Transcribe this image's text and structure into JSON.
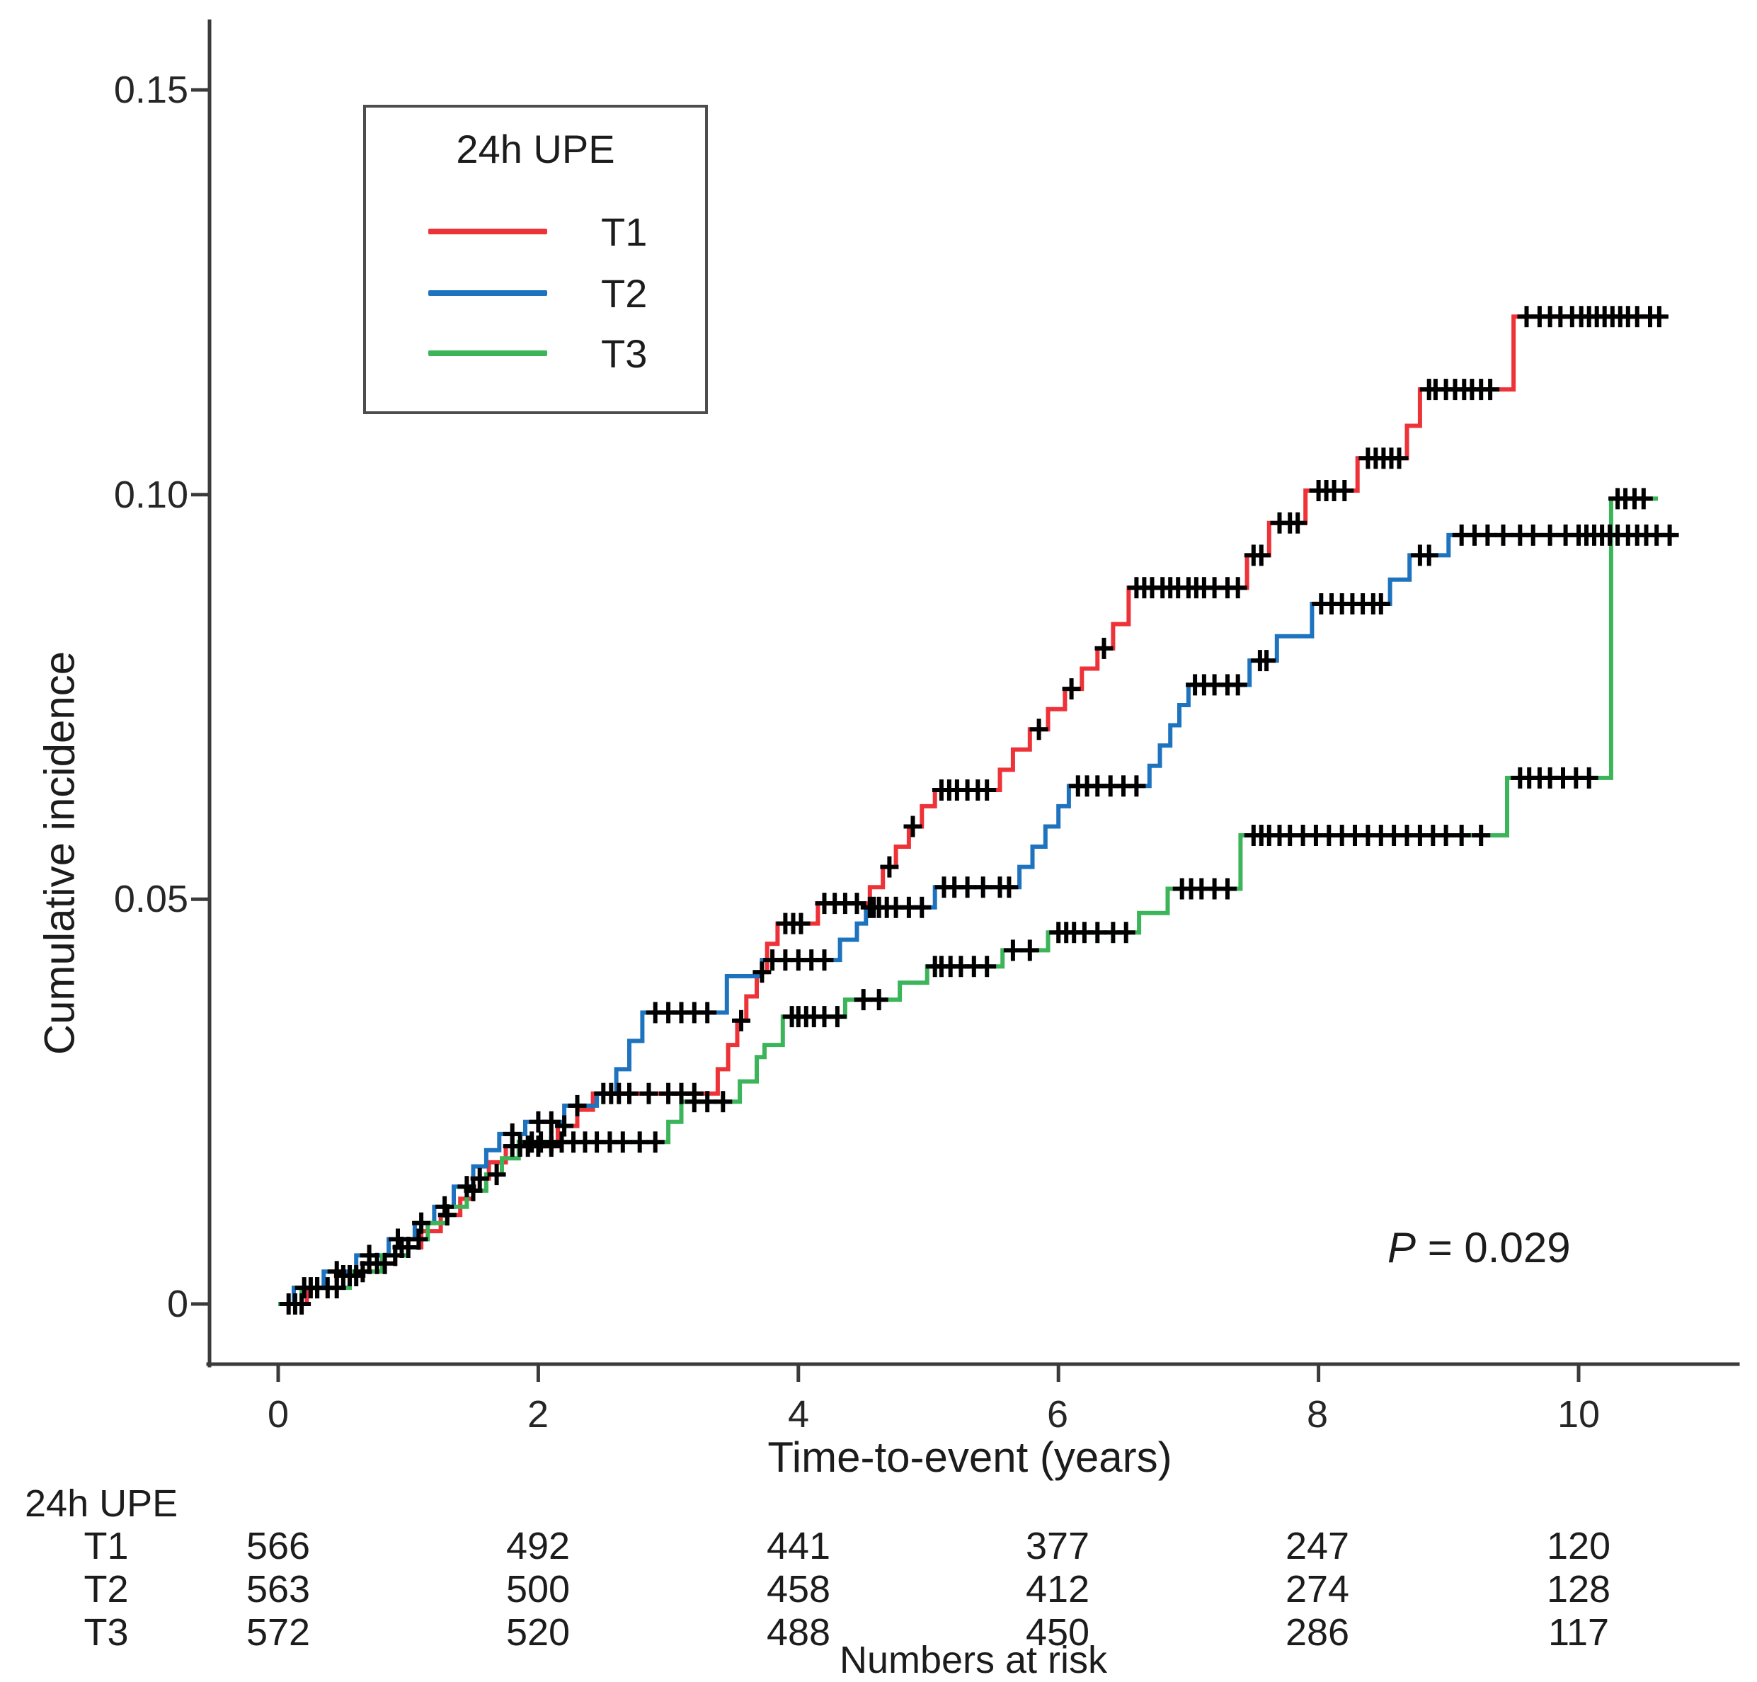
{
  "figure": {
    "y_axis": {
      "label": "Cumulative incidence",
      "ticks": [
        "0.15",
        "0.10",
        "0.05",
        "0"
      ],
      "tick_values": [
        0.15,
        0.1,
        0.05,
        0
      ]
    },
    "x_axis": {
      "label": "Time-to-event (years)",
      "ticks": [
        "0",
        "2",
        "4",
        "6",
        "8",
        "10"
      ],
      "tick_values": [
        0,
        2,
        4,
        6,
        8,
        10
      ]
    },
    "legend": {
      "title": "24h UPE",
      "items": [
        {
          "label": "T1",
          "color": "#ED3238"
        },
        {
          "label": "T2",
          "color": "#1E73BE"
        },
        {
          "label": "T3",
          "color": "#3CB45A"
        }
      ]
    },
    "annotation": {
      "p_italic": "P",
      "p_text": " = 0.029"
    }
  },
  "chart_data": {
    "type": "line",
    "subtype": "cumulative-incidence-step-curves",
    "title": "",
    "xlabel": "Time-to-event (years)",
    "ylabel": "Cumulative incidence",
    "xlim": [
      0,
      11.1
    ],
    "ylim": [
      0,
      0.155
    ],
    "x_ticks": [
      0,
      2,
      4,
      6,
      8,
      10
    ],
    "y_ticks": [
      0,
      0.05,
      0.1,
      0.15
    ],
    "grid": false,
    "legend_position": "top-left-inside",
    "p_value_text": "P = 0.029",
    "censor_marker": "plus",
    "series": [
      {
        "name": "T1",
        "color": "#ED3238",
        "end": 10.64,
        "steps": [
          [
            0,
            0
          ],
          [
            0.22,
            0.002
          ],
          [
            0.45,
            0.0035
          ],
          [
            0.65,
            0.005
          ],
          [
            0.9,
            0.007
          ],
          [
            1.1,
            0.009
          ],
          [
            1.25,
            0.011
          ],
          [
            1.4,
            0.013
          ],
          [
            1.5,
            0.0155
          ],
          [
            1.62,
            0.0175
          ],
          [
            1.75,
            0.0195
          ],
          [
            2.15,
            0.022
          ],
          [
            2.3,
            0.024
          ],
          [
            2.42,
            0.026
          ],
          [
            3.38,
            0.029
          ],
          [
            3.46,
            0.032
          ],
          [
            3.53,
            0.035
          ],
          [
            3.6,
            0.038
          ],
          [
            3.68,
            0.041
          ],
          [
            3.76,
            0.0445
          ],
          [
            3.84,
            0.047
          ],
          [
            4.15,
            0.0495
          ],
          [
            4.55,
            0.0515
          ],
          [
            4.65,
            0.054
          ],
          [
            4.75,
            0.0565
          ],
          [
            4.85,
            0.059
          ],
          [
            4.95,
            0.0615
          ],
          [
            5.05,
            0.0635
          ],
          [
            5.55,
            0.066
          ],
          [
            5.65,
            0.0685
          ],
          [
            5.78,
            0.071
          ],
          [
            5.92,
            0.0735
          ],
          [
            6.05,
            0.076
          ],
          [
            6.18,
            0.0785
          ],
          [
            6.3,
            0.081
          ],
          [
            6.42,
            0.084
          ],
          [
            6.54,
            0.0885
          ],
          [
            7.45,
            0.0925
          ],
          [
            7.62,
            0.0965
          ],
          [
            7.9,
            0.1005
          ],
          [
            8.3,
            0.1045
          ],
          [
            8.68,
            0.1085
          ],
          [
            8.78,
            0.113
          ],
          [
            9.5,
            0.122
          ]
        ],
        "censor_times": [
          0.08,
          0.13,
          0.18,
          0.3,
          0.38,
          0.5,
          0.55,
          0.6,
          0.7,
          0.76,
          0.82,
          0.95,
          1.0,
          1.3,
          1.55,
          1.8,
          1.86,
          1.92,
          2.0,
          2.1,
          2.2,
          2.5,
          2.56,
          2.62,
          2.7,
          2.85,
          3.0,
          3.1,
          3.2,
          3.56,
          3.72,
          3.9,
          3.96,
          4.02,
          4.2,
          4.28,
          4.36,
          4.45,
          4.7,
          4.88,
          5.1,
          5.16,
          5.22,
          5.3,
          5.38,
          5.45,
          5.85,
          6.1,
          6.35,
          6.6,
          6.66,
          6.72,
          6.8,
          6.86,
          6.92,
          7.0,
          7.06,
          7.12,
          7.2,
          7.3,
          7.38,
          7.5,
          7.56,
          7.7,
          7.78,
          7.84,
          8.0,
          8.06,
          8.12,
          8.2,
          8.38,
          8.44,
          8.5,
          8.56,
          8.62,
          8.85,
          8.9,
          8.98,
          9.05,
          9.12,
          9.18,
          9.25,
          9.32,
          9.6,
          9.7,
          9.78,
          9.86,
          9.95,
          10.02,
          10.08,
          10.14,
          10.2,
          10.26,
          10.32,
          10.38,
          10.45,
          10.55,
          10.62
        ]
      },
      {
        "name": "T2",
        "color": "#1E73BE",
        "end": 10.74,
        "steps": [
          [
            0,
            0
          ],
          [
            0.12,
            0.002
          ],
          [
            0.35,
            0.004
          ],
          [
            0.6,
            0.006
          ],
          [
            0.85,
            0.008
          ],
          [
            1.05,
            0.01
          ],
          [
            1.2,
            0.012
          ],
          [
            1.35,
            0.0145
          ],
          [
            1.5,
            0.017
          ],
          [
            1.6,
            0.019
          ],
          [
            1.7,
            0.021
          ],
          [
            1.9,
            0.0225
          ],
          [
            2.2,
            0.0245
          ],
          [
            2.45,
            0.026
          ],
          [
            2.6,
            0.029
          ],
          [
            2.7,
            0.0325
          ],
          [
            2.8,
            0.036
          ],
          [
            3.45,
            0.0405
          ],
          [
            3.72,
            0.0425
          ],
          [
            4.32,
            0.045
          ],
          [
            4.45,
            0.047
          ],
          [
            4.52,
            0.049
          ],
          [
            5.05,
            0.0515
          ],
          [
            5.7,
            0.054
          ],
          [
            5.8,
            0.0565
          ],
          [
            5.9,
            0.059
          ],
          [
            6.0,
            0.0615
          ],
          [
            6.08,
            0.064
          ],
          [
            6.7,
            0.0665
          ],
          [
            6.78,
            0.069
          ],
          [
            6.86,
            0.0715
          ],
          [
            6.93,
            0.074
          ],
          [
            7.0,
            0.0765
          ],
          [
            7.47,
            0.0795
          ],
          [
            7.68,
            0.0825
          ],
          [
            7.95,
            0.0865
          ],
          [
            8.55,
            0.0895
          ],
          [
            8.7,
            0.0925
          ],
          [
            9.0,
            0.095
          ]
        ],
        "censor_times": [
          0.2,
          0.3,
          0.45,
          0.7,
          0.92,
          1.1,
          1.28,
          1.45,
          1.8,
          2.0,
          2.1,
          2.3,
          2.9,
          3.0,
          3.1,
          3.2,
          3.3,
          3.8,
          3.9,
          4.0,
          4.1,
          4.2,
          4.55,
          4.58,
          4.62,
          4.68,
          4.75,
          4.85,
          4.95,
          5.12,
          5.2,
          5.3,
          5.42,
          5.55,
          5.62,
          6.15,
          6.22,
          6.3,
          6.4,
          6.5,
          6.6,
          7.05,
          7.12,
          7.2,
          7.3,
          7.38,
          7.55,
          7.6,
          8.02,
          8.1,
          8.18,
          8.26,
          8.34,
          8.42,
          8.48,
          8.78,
          8.85,
          9.1,
          9.2,
          9.3,
          9.42,
          9.55,
          9.65,
          9.78,
          9.9,
          10.0,
          10.06,
          10.12,
          10.18,
          10.24,
          10.3,
          10.38,
          10.45,
          10.52,
          10.6,
          10.7
        ]
      },
      {
        "name": "T3",
        "color": "#3CB45A",
        "end": 10.61,
        "steps": [
          [
            0,
            0
          ],
          [
            0.18,
            0.002
          ],
          [
            0.55,
            0.004
          ],
          [
            0.8,
            0.006
          ],
          [
            1.0,
            0.008
          ],
          [
            1.15,
            0.01
          ],
          [
            1.3,
            0.012
          ],
          [
            1.45,
            0.014
          ],
          [
            1.6,
            0.016
          ],
          [
            1.72,
            0.018
          ],
          [
            1.85,
            0.02
          ],
          [
            3.0,
            0.0225
          ],
          [
            3.1,
            0.025
          ],
          [
            3.55,
            0.0275
          ],
          [
            3.68,
            0.0305
          ],
          [
            3.74,
            0.032
          ],
          [
            3.88,
            0.0355
          ],
          [
            4.36,
            0.0376
          ],
          [
            4.78,
            0.0397
          ],
          [
            4.99,
            0.0417
          ],
          [
            5.57,
            0.0437
          ],
          [
            5.92,
            0.0459
          ],
          [
            6.62,
            0.0483
          ],
          [
            6.84,
            0.0513
          ],
          [
            7.4,
            0.0579
          ],
          [
            9.45,
            0.065
          ],
          [
            10.25,
            0.0995
          ]
        ],
        "censor_times": [
          0.25,
          0.45,
          0.65,
          0.9,
          1.08,
          1.5,
          1.68,
          1.95,
          2.02,
          2.1,
          2.18,
          2.27,
          2.36,
          2.45,
          2.55,
          2.65,
          2.78,
          2.9,
          3.2,
          3.3,
          3.42,
          3.95,
          4.0,
          4.06,
          4.12,
          4.2,
          4.3,
          4.5,
          4.62,
          5.05,
          5.1,
          5.17,
          5.25,
          5.35,
          5.45,
          5.65,
          5.78,
          6.0,
          6.06,
          6.12,
          6.2,
          6.3,
          6.42,
          6.52,
          6.95,
          7.02,
          7.1,
          7.2,
          7.3,
          7.5,
          7.56,
          7.62,
          7.7,
          7.78,
          7.88,
          7.98,
          8.08,
          8.18,
          8.28,
          8.38,
          8.48,
          8.58,
          8.68,
          8.78,
          8.88,
          8.98,
          9.1,
          9.25,
          9.55,
          9.62,
          9.7,
          9.78,
          9.88,
          9.98,
          10.08,
          10.3,
          10.36,
          10.43,
          10.5
        ]
      }
    ]
  },
  "risk_table": {
    "group_label": "24h UPE",
    "caption": "Numbers at risk",
    "time_points": [
      0,
      2,
      4,
      6,
      8,
      10
    ],
    "rows": [
      {
        "label": "T1",
        "values": [
          566,
          492,
          441,
          377,
          247,
          120
        ]
      },
      {
        "label": "T2",
        "values": [
          563,
          500,
          458,
          412,
          274,
          128
        ]
      },
      {
        "label": "T3",
        "values": [
          572,
          520,
          488,
          450,
          286,
          117
        ]
      }
    ]
  }
}
